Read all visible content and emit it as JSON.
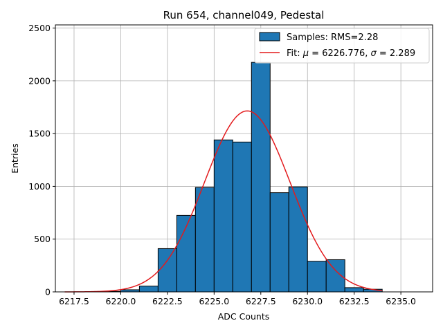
{
  "chart_data": {
    "type": "bar",
    "title": "Run 654, channel049, Pedestal",
    "xlabel": "ADC Counts",
    "ylabel": "Entries",
    "xlim": [
      6216.5,
      6236.7
    ],
    "ylim": [
      0,
      2530
    ],
    "grid": true,
    "legend_position": "top-right",
    "x_ticks": [
      6217.5,
      6220.0,
      6222.5,
      6225.0,
      6227.5,
      6230.0,
      6232.5,
      6235.0
    ],
    "x_tick_labels": [
      "6217.5",
      "6220.0",
      "6222.5",
      "6225.0",
      "6227.5",
      "6230.0",
      "6232.5",
      "6235.0"
    ],
    "y_ticks": [
      0,
      500,
      1000,
      1500,
      2000,
      2500
    ],
    "y_tick_labels": [
      "0",
      "500",
      "1000",
      "1500",
      "2000",
      "2500"
    ],
    "histogram": {
      "name": "Samples: RMS=2.28",
      "color": "#1f77b4",
      "edge_color": "#000000",
      "bin_edges": [
        6219.0,
        6220.0,
        6221.0,
        6222.0,
        6223.0,
        6224.0,
        6225.0,
        6226.0,
        6227.0,
        6228.0,
        6229.0,
        6230.0,
        6231.0,
        6232.0,
        6233.0,
        6234.0
      ],
      "counts": [
        5,
        20,
        55,
        410,
        725,
        990,
        1440,
        1420,
        2175,
        940,
        995,
        290,
        305,
        40,
        25
      ]
    },
    "fit": {
      "name_prefix": "Fit: ",
      "mu_symbol": "μ",
      "mu_value": " = 6226.776, ",
      "sigma_symbol": "σ",
      "sigma_value": " = 2.289",
      "color": "#e31a1c",
      "mu": 6226.776,
      "sigma": 2.289,
      "amplitude": 1715,
      "x_range": [
        6217.0,
        6234.0
      ]
    }
  }
}
